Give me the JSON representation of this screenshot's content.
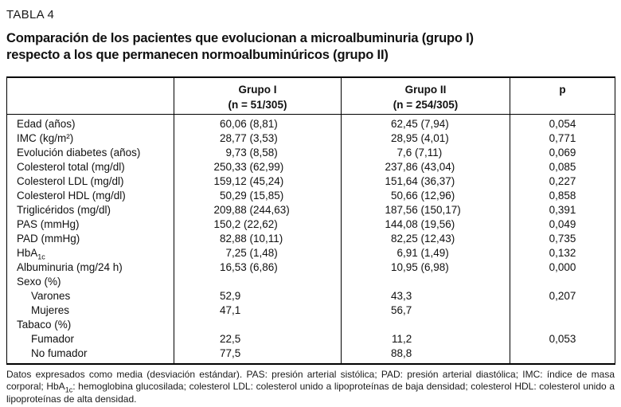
{
  "page": {
    "kicker": "TABLA 4",
    "title_line1": "Comparación de los pacientes que evolucionan a microalbuminuria (grupo I)",
    "title_line2": "respecto a los que permanecen normoalbuminúricos (grupo II)"
  },
  "table": {
    "columns": [
      {
        "label": "",
        "sub": ""
      },
      {
        "label": "Grupo I",
        "sub": "(n = 51/305)"
      },
      {
        "label": "Grupo II",
        "sub": "(n = 254/305)"
      },
      {
        "label": "p",
        "sub": ""
      }
    ],
    "rows": [
      {
        "label": "Edad (años)",
        "g1": "60,06 (8,81)",
        "g2": "62,45 (7,94)",
        "p": "0,054"
      },
      {
        "label": "IMC (kg/m²)",
        "g1": "28,77 (3,53)",
        "g2": "28,95 (4,01)",
        "p": "0,771"
      },
      {
        "label": "Evolución diabetes (años)",
        "g1": "9,73 (8,58)",
        "g2": "7,6 (7,11)",
        "p": "0,069"
      },
      {
        "label": "Colesterol total (mg/dl)",
        "g1": "250,33 (62,99)",
        "g2": "237,86 (43,04)",
        "p": "0,085"
      },
      {
        "label": "Colesterol LDL (mg/dl)",
        "g1": "159,12 (45,24)",
        "g2": "151,64 (36,37)",
        "p": "0,227"
      },
      {
        "label": "Colesterol HDL (mg/dl)",
        "g1": "50,29 (15,85)",
        "g2": "50,66 (12,96)",
        "p": "0,858"
      },
      {
        "label": "Triglicéridos (mg/dl)",
        "g1": "209,88 (244,63)",
        "g2": "187,56 (150,17)",
        "p": "0,391"
      },
      {
        "label": "PAS (mmHg)",
        "g1": "150,2 (22,62)",
        "g2": "144,08 (19,56)",
        "p": "0,049"
      },
      {
        "label": "PAD (mmHg)",
        "g1": "82,88 (10,11)",
        "g2": "82,25 (12,43)",
        "p": "0,735"
      },
      {
        "label": "HbA",
        "label_sub": "1c",
        "g1": "7,25 (1,48)",
        "g2": "6,91 (1,49)",
        "p": "0,132"
      },
      {
        "label": "Albuminuria (mg/24 h)",
        "g1": "16,53 (6,86)",
        "g2": "10,95 (6,98)",
        "p": "0,000"
      },
      {
        "label": "Sexo (%)",
        "g1": "",
        "g2": "",
        "p": ""
      },
      {
        "label": "Varones",
        "g1": "52,9",
        "g2": "43,3",
        "p": "0,207"
      },
      {
        "label": "Mujeres",
        "g1": "47,1",
        "g2": "56,7",
        "p": ""
      },
      {
        "label": "Tabaco (%)",
        "g1": "",
        "g2": "",
        "p": ""
      },
      {
        "label": "Fumador",
        "g1": "22,5",
        "g2": "11,2",
        "p": "0,053"
      },
      {
        "label": "No fumador",
        "g1": "77,5",
        "g2": "88,8",
        "p": ""
      }
    ]
  },
  "footnote": {
    "part1": "Datos expresados como media (desviación estándar). PAS: presión arterial sistólica; PAD: presión arterial diastólica; IMC: índice de masa corporal; HbA",
    "subscript": "1c",
    "part2": ": hemoglobina glucosilada; colesterol LDL: colesterol unido a lipoproteínas de baja densidad; colesterol HDL: colesterol unido a lipoproteínas de alta densidad."
  }
}
